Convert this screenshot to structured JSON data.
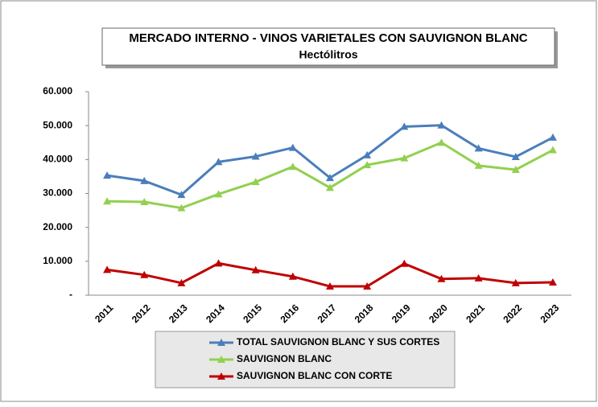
{
  "chart_data": {
    "type": "line",
    "title": "MERCADO INTERNO - VINOS VARIETALES CON SAUVIGNON BLANC",
    "subtitle": "Hectólitros",
    "categories": [
      "2011",
      "2012",
      "2013",
      "2014",
      "2015",
      "2016",
      "2017",
      "2018",
      "2019",
      "2020",
      "2021",
      "2022",
      "2023"
    ],
    "series": [
      {
        "name": "TOTAL SAUVIGNON BLANC Y SUS CORTES",
        "color": "#4a7ebb",
        "values": [
          35300,
          33700,
          29600,
          39300,
          40900,
          43500,
          34600,
          41300,
          49700,
          50100,
          43300,
          40800,
          46500
        ]
      },
      {
        "name": "SAUVIGNON BLANC",
        "color": "#92d050",
        "values": [
          27700,
          27500,
          25700,
          29800,
          33400,
          37900,
          31700,
          38400,
          40400,
          45000,
          38200,
          37000,
          42800
        ]
      },
      {
        "name": "SAUVIGNON BLANC  CON CORTE",
        "color": "#c00000",
        "values": [
          7500,
          6000,
          3600,
          9400,
          7400,
          5500,
          2600,
          2600,
          9300,
          4800,
          5000,
          3600,
          3800
        ]
      }
    ],
    "ylim": [
      0,
      60000
    ],
    "yticks": [
      {
        "value": 0,
        "label": "-"
      },
      {
        "value": 10000,
        "label": "10.000"
      },
      {
        "value": 20000,
        "label": "20.000"
      },
      {
        "value": 30000,
        "label": "30.000"
      },
      {
        "value": 40000,
        "label": "40.000"
      },
      {
        "value": 50000,
        "label": "50.000"
      },
      {
        "value": 60000,
        "label": "60.000"
      }
    ],
    "grid": false,
    "legend": "bottom"
  }
}
